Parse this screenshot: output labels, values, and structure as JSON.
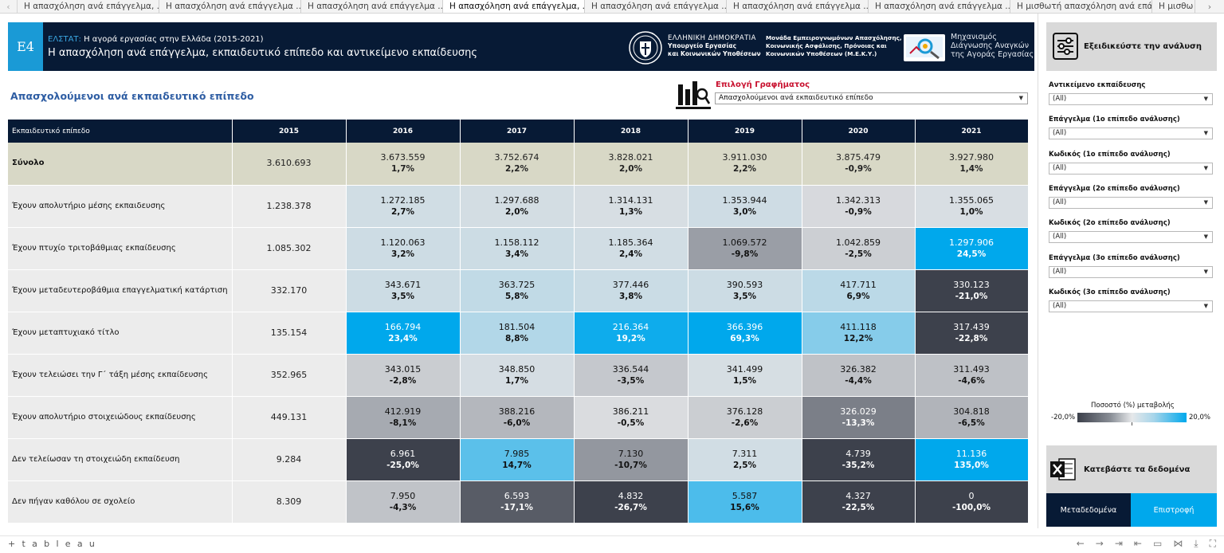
{
  "tabs": [
    {
      "label": "Η απασχόληση ανά επάγγελμα, ...",
      "active": false
    },
    {
      "label": "Η απασχόληση ανά επάγγελμα ...",
      "active": false
    },
    {
      "label": "Η απασχόληση ανά επάγγελμα ...",
      "active": false
    },
    {
      "label": "Η απασχόληση ανά επάγγελμα, ...",
      "active": true
    },
    {
      "label": "Η απασχόληση ανά επάγγελμα ...",
      "active": false
    },
    {
      "label": "Η απασχόληση ανά επάγγελμα ...",
      "active": false
    },
    {
      "label": "Η απασχόληση ανά επάγγελμα ...",
      "active": false
    },
    {
      "label": "Η μισθωτή απασχόληση ανά επά...",
      "active": false
    },
    {
      "label": "Η μισθω",
      "active": false
    }
  ],
  "banner": {
    "badge": "E4",
    "source_prefix": "ΕΛΣΤΑΤ:",
    "source_rest": "Η αγορά εργασίας στην Ελλάδα (2015-2021)",
    "title": "Η απασχόληση ανά επάγγελμα, εκπαιδευτικό επίπεδο και αντικείμενο εκπαίδευσης",
    "gov_line1": "ΕΛΛΗΝΙΚΗ ΔΗΜΟΚΡΑΤΙΑ",
    "gov_line2": "Υπουργείο Εργασίας",
    "gov_line3": "και Κοινωνικών Υποθέσεων",
    "meke_line1": "Μονάδα Εμπειρογνωμόνων Απασχόλησης,",
    "meke_line2": "Κοινωνικής Ασφάλισης, Πρόνοιας και",
    "meke_line3": "Κοινωνικών Υποθέσεων (Μ.Ε.Κ.Υ.)",
    "mech_line1": "Μηχανισμός",
    "mech_line2": "Διάγνωσης Αναγκών",
    "mech_line3": "της Αγοράς Εργασίας"
  },
  "section_title": "Απασχολούμενοι ανά εκπαιδευτικό επίπεδο",
  "chart_selector": {
    "label": "Επιλογή Γραφήματος",
    "value": "Απασχολούμενοι ανά εκπαιδευτικό επίπεδο"
  },
  "table": {
    "header_first": "Εκπαιδευτικό επίπεδο",
    "years": [
      "2015",
      "2016",
      "2017",
      "2018",
      "2019",
      "2020",
      "2021"
    ],
    "rows": [
      {
        "label": "Σύνολο",
        "total": true,
        "base": "3.610.693",
        "cells": [
          [
            "3.673.559",
            "1,7%"
          ],
          [
            "3.752.674",
            "2,2%"
          ],
          [
            "3.828.021",
            "2,0%"
          ],
          [
            "3.911.030",
            "2,2%"
          ],
          [
            "3.875.479",
            "-0,9%"
          ],
          [
            "3.927.980",
            "1,4%"
          ]
        ]
      },
      {
        "label": "Έχουν απολυτήριο μέσης εκπαιδευσης",
        "base": "1.238.378",
        "cells": [
          [
            "1.272.185",
            "2,7%"
          ],
          [
            "1.297.688",
            "2,0%"
          ],
          [
            "1.314.131",
            "1,3%"
          ],
          [
            "1.353.944",
            "3,0%"
          ],
          [
            "1.342.313",
            "-0,9%"
          ],
          [
            "1.355.065",
            "1,0%"
          ]
        ]
      },
      {
        "label": "Έχουν πτυχίο τριτοβάθμιας εκπαίδευσης",
        "base": "1.085.302",
        "cells": [
          [
            "1.120.063",
            "3,2%"
          ],
          [
            "1.158.112",
            "3,4%"
          ],
          [
            "1.185.364",
            "2,4%"
          ],
          [
            "1.069.572",
            "-9,8%"
          ],
          [
            "1.042.859",
            "-2,5%"
          ],
          [
            "1.297.906",
            "24,5%"
          ]
        ]
      },
      {
        "label": "Έχουν μεταδευτεροβάθμια επαγγελματική κατάρτιση",
        "base": "332.170",
        "cells": [
          [
            "343.671",
            "3,5%"
          ],
          [
            "363.725",
            "5,8%"
          ],
          [
            "377.446",
            "3,8%"
          ],
          [
            "390.593",
            "3,5%"
          ],
          [
            "417.711",
            "6,9%"
          ],
          [
            "330.123",
            "-21,0%"
          ]
        ]
      },
      {
        "label": "Έχουν μεταπτυχιακό τίτλο",
        "base": "135.154",
        "cells": [
          [
            "166.794",
            "23,4%"
          ],
          [
            "181.504",
            "8,8%"
          ],
          [
            "216.364",
            "19,2%"
          ],
          [
            "366.396",
            "69,3%"
          ],
          [
            "411.118",
            "12,2%"
          ],
          [
            "317.439",
            "-22,8%"
          ]
        ]
      },
      {
        "label": "Έχουν τελειώσει την Γ΄ τάξη μέσης εκπαίδευσης",
        "base": "352.965",
        "cells": [
          [
            "343.015",
            "-2,8%"
          ],
          [
            "348.850",
            "1,7%"
          ],
          [
            "336.544",
            "-3,5%"
          ],
          [
            "341.499",
            "1,5%"
          ],
          [
            "326.382",
            "-4,4%"
          ],
          [
            "311.493",
            "-4,6%"
          ]
        ]
      },
      {
        "label": "Έχουν απολυτήριο στοιχειώδους εκπαίδευσης",
        "base": "449.131",
        "cells": [
          [
            "412.919",
            "-8,1%"
          ],
          [
            "388.216",
            "-6,0%"
          ],
          [
            "386.211",
            "-0,5%"
          ],
          [
            "376.128",
            "-2,6%"
          ],
          [
            "326.029",
            "-13,3%"
          ],
          [
            "304.818",
            "-6,5%"
          ]
        ]
      },
      {
        "label": "Δεν τελείωσαν τη στοιχειώδη εκπαίδευση",
        "base": "9.284",
        "cells": [
          [
            "6.961",
            "-25,0%"
          ],
          [
            "7.985",
            "14,7%"
          ],
          [
            "7.130",
            "-10,7%"
          ],
          [
            "7.311",
            "2,5%"
          ],
          [
            "4.739",
            "-35,2%"
          ],
          [
            "11.136",
            "135,0%"
          ]
        ]
      },
      {
        "label": "Δεν πήγαν καθόλου σε σχολείο",
        "base": "8.309",
        "cells": [
          [
            "7.950",
            "-4,3%"
          ],
          [
            "6.593",
            "-17,1%"
          ],
          [
            "4.832",
            "-26,7%"
          ],
          [
            "5.587",
            "15,6%"
          ],
          [
            "4.327",
            "-22,5%"
          ],
          [
            "0",
            "-100,0%"
          ]
        ]
      }
    ]
  },
  "sidebar": {
    "refine_label": "Εξειδικεύστε την ανάλυση",
    "filters": [
      {
        "label": "Αντικείμενο εκπαίδευσης",
        "value": "(All)"
      },
      {
        "label": "Επάγγελμα (1ο επίπεδο ανάλυσης)",
        "value": "(All)"
      },
      {
        "label": "Κωδικός (1ο επίπεδο ανάλυσης)",
        "value": "(All)"
      },
      {
        "label": "Επάγγελμα (2ο επίπεδο ανάλυσης)",
        "value": "(All)"
      },
      {
        "label": "Κωδικός (2ο επίπεδο ανάλυσης)",
        "value": "(All)"
      },
      {
        "label": "Επάγγελμα (3ο επίπεδο ανάλυσης)",
        "value": "(All)"
      },
      {
        "label": "Κωδικός (3ο επίπεδο ανάλυσης)",
        "value": "(All)"
      }
    ],
    "legend": {
      "title": "Ποσοστό (%) μεταβολής",
      "min": "-20,0%",
      "max": "20,0%"
    },
    "download_label": "Κατεβάστε τα δεδομένα",
    "metadata_label": "Μεταδεδομένα",
    "back_label": "Επιστροφή"
  },
  "footer": {
    "logo": "+ t a b l e a u"
  },
  "colors": {
    "navy": "#071a35",
    "accent": "#00a8ec",
    "badge": "#1a9ad6",
    "red_label": "#c8102e",
    "title_blue": "#2e5da3"
  }
}
